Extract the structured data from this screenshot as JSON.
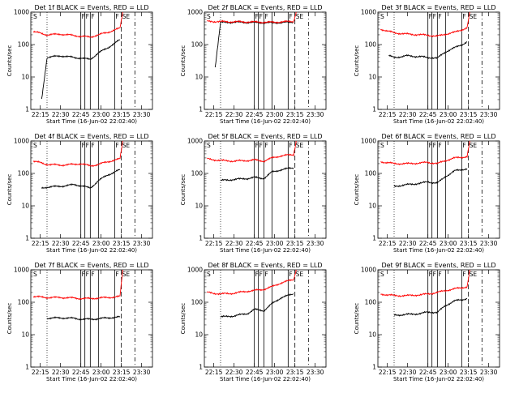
{
  "chart_data": [
    {
      "type": "line",
      "title": "Det 1f BLACK = Events, RED = LLD",
      "xlabel": "Start Time (16-Jun-02 22:02:40)",
      "ylabel": "Counts/sec",
      "yscale": "log",
      "ylim": [
        1,
        1000
      ],
      "xlim": [
        "22:08",
        "23:38"
      ],
      "x_ticks": [
        "22:15",
        "22:30",
        "22:45",
        "23:00",
        "23:15",
        "23:30"
      ],
      "y_ticks": [
        "1",
        "10",
        "100",
        "1000"
      ],
      "annotations": [
        "S",
        "F",
        "F",
        "F",
        "F",
        "SE"
      ],
      "series": [
        {
          "name": "BLACK = Events",
          "color": "#000000",
          "x": [
            "22:16",
            "22:20",
            "22:30",
            "22:40",
            "22:45",
            "22:52",
            "22:58",
            "23:05",
            "23:14"
          ],
          "values": [
            2,
            40,
            45,
            40,
            38,
            35,
            55,
            80,
            140
          ]
        },
        {
          "name": "RED = LLD",
          "color": "#ff0000",
          "x": [
            "22:10",
            "22:20",
            "22:30",
            "22:40",
            "22:45",
            "22:52",
            "22:58",
            "23:05",
            "23:14",
            "23:16"
          ],
          "values": [
            250,
            200,
            210,
            190,
            180,
            170,
            200,
            240,
            320,
            1000
          ]
        }
      ]
    },
    {
      "type": "line",
      "title": "Det 2f BLACK = Events, RED = LLD",
      "xlabel": "Start Time (16-Jun-02 22:02:40)",
      "ylabel": "Counts/sec",
      "yscale": "log",
      "ylim": [
        1,
        1000
      ],
      "xlim": [
        "22:08",
        "23:38"
      ],
      "x_ticks": [
        "22:15",
        "22:30",
        "22:45",
        "23:00",
        "23:15",
        "23:30"
      ],
      "y_ticks": [
        "1",
        "10",
        "100",
        "1000"
      ],
      "annotations": [
        "S",
        "F",
        "F",
        "F",
        "F",
        "SE"
      ],
      "series": [
        {
          "name": "BLACK = Events",
          "color": "#000000",
          "x": [
            "22:16",
            "22:20",
            "22:30",
            "22:40",
            "22:45",
            "22:52",
            "22:58",
            "23:05",
            "23:14"
          ],
          "values": [
            20,
            480,
            490,
            485,
            480,
            475,
            470,
            480,
            490
          ]
        },
        {
          "name": "RED = LLD",
          "color": "#ff0000",
          "x": [
            "22:10",
            "22:20",
            "22:30",
            "22:40",
            "22:45",
            "22:52",
            "22:58",
            "23:05",
            "23:14",
            "23:16"
          ],
          "values": [
            520,
            510,
            505,
            500,
            495,
            490,
            485,
            500,
            520,
            1000
          ]
        }
      ]
    },
    {
      "type": "line",
      "title": "Det 3f BLACK = Events, RED = LLD",
      "xlabel": "Start Time (16-Jun-02 22:02:40)",
      "ylabel": "Counts/sec",
      "yscale": "log",
      "ylim": [
        1,
        1000
      ],
      "xlim": [
        "22:08",
        "23:38"
      ],
      "x_ticks": [
        "22:15",
        "22:30",
        "22:45",
        "23:00",
        "23:15",
        "23:30"
      ],
      "y_ticks": [
        "1",
        "10",
        "100",
        "1000"
      ],
      "annotations": [
        "S",
        "F",
        "F",
        "F",
        "F",
        "SE"
      ],
      "series": [
        {
          "name": "BLACK = Events",
          "color": "#000000",
          "x": [
            "22:16",
            "22:20",
            "22:30",
            "22:40",
            "22:45",
            "22:52",
            "22:58",
            "23:05",
            "23:14"
          ],
          "values": [
            45,
            40,
            45,
            42,
            40,
            38,
            60,
            80,
            120
          ]
        },
        {
          "name": "RED = LLD",
          "color": "#ff0000",
          "x": [
            "22:10",
            "22:20",
            "22:30",
            "22:40",
            "22:45",
            "22:52",
            "22:58",
            "23:05",
            "23:14",
            "23:16"
          ],
          "values": [
            300,
            230,
            210,
            200,
            195,
            180,
            210,
            240,
            330,
            1000
          ]
        }
      ]
    },
    {
      "type": "line",
      "title": "Det 4f BLACK = Events, RED = LLD",
      "xlabel": "Start Time (16-Jun-02 22:02:40)",
      "ylabel": "Counts/sec",
      "yscale": "log",
      "ylim": [
        1,
        1000
      ],
      "xlim": [
        "22:08",
        "23:38"
      ],
      "x_ticks": [
        "22:15",
        "22:30",
        "22:45",
        "23:00",
        "23:15",
        "23:30"
      ],
      "y_ticks": [
        "1",
        "10",
        "100",
        "1000"
      ],
      "annotations": [
        "S",
        "F",
        "F",
        "F",
        "F",
        "SE"
      ],
      "series": [
        {
          "name": "BLACK = Events",
          "color": "#000000",
          "x": [
            "22:16",
            "22:20",
            "22:30",
            "22:40",
            "22:45",
            "22:52",
            "22:58",
            "23:05",
            "23:14"
          ],
          "values": [
            35,
            38,
            40,
            45,
            42,
            35,
            60,
            90,
            130
          ]
        },
        {
          "name": "RED = LLD",
          "color": "#ff0000",
          "x": [
            "22:10",
            "22:20",
            "22:30",
            "22:40",
            "22:45",
            "22:52",
            "22:58",
            "23:05",
            "23:14",
            "23:16"
          ],
          "values": [
            240,
            190,
            180,
            190,
            200,
            170,
            190,
            230,
            280,
            1000
          ]
        }
      ]
    },
    {
      "type": "line",
      "title": "Det 5f BLACK = Events, RED = LLD",
      "xlabel": "Start Time (16-Jun-02 22:02:40)",
      "ylabel": "Counts/sec",
      "yscale": "log",
      "ylim": [
        1,
        1000
      ],
      "xlim": [
        "22:08",
        "23:38"
      ],
      "x_ticks": [
        "22:15",
        "22:30",
        "22:45",
        "23:00",
        "23:15",
        "23:30"
      ],
      "y_ticks": [
        "1",
        "10",
        "100",
        "1000"
      ],
      "annotations": [
        "S",
        "F",
        "F",
        "F",
        "F",
        "SE"
      ],
      "series": [
        {
          "name": "BLACK = Events",
          "color": "#000000",
          "x": [
            "22:20",
            "22:30",
            "22:40",
            "22:45",
            "22:52",
            "22:58",
            "23:05",
            "23:14"
          ],
          "values": [
            60,
            65,
            70,
            75,
            70,
            110,
            130,
            150
          ]
        },
        {
          "name": "RED = LLD",
          "color": "#ff0000",
          "x": [
            "22:10",
            "22:20",
            "22:30",
            "22:40",
            "22:45",
            "22:52",
            "22:58",
            "23:05",
            "23:14",
            "23:16"
          ],
          "values": [
            280,
            250,
            240,
            250,
            260,
            240,
            300,
            350,
            380,
            1000
          ]
        }
      ]
    },
    {
      "type": "line",
      "title": "Det 6f BLACK = Events, RED = LLD",
      "xlabel": "Start Time (16-Jun-02 22:02:40)",
      "ylabel": "Counts/sec",
      "yscale": "log",
      "ylim": [
        1,
        1000
      ],
      "xlim": [
        "22:08",
        "23:38"
      ],
      "x_ticks": [
        "22:15",
        "22:30",
        "22:45",
        "23:00",
        "23:15",
        "23:30"
      ],
      "y_ticks": [
        "1",
        "10",
        "100",
        "1000"
      ],
      "annotations": [
        "S",
        "F",
        "F",
        "F",
        "F",
        "SE"
      ],
      "series": [
        {
          "name": "BLACK = Events",
          "color": "#000000",
          "x": [
            "22:20",
            "22:30",
            "22:40",
            "22:45",
            "22:52",
            "22:58",
            "23:05",
            "23:14"
          ],
          "values": [
            40,
            45,
            50,
            55,
            50,
            80,
            120,
            140
          ]
        },
        {
          "name": "RED = LLD",
          "color": "#ff0000",
          "x": [
            "22:10",
            "22:20",
            "22:30",
            "22:40",
            "22:45",
            "22:52",
            "22:58",
            "23:05",
            "23:14",
            "23:16"
          ],
          "values": [
            230,
            200,
            200,
            210,
            220,
            200,
            250,
            300,
            330,
            1000
          ]
        }
      ]
    },
    {
      "type": "line",
      "title": "Det 7f BLACK = Events, RED = LLD",
      "xlabel": "Start Time (16-Jun-02 22:02:40)",
      "ylabel": "Counts/sec",
      "yscale": "log",
      "ylim": [
        1,
        1000
      ],
      "xlim": [
        "22:08",
        "23:38"
      ],
      "x_ticks": [
        "22:15",
        "22:30",
        "22:45",
        "23:00",
        "23:15",
        "23:30"
      ],
      "y_ticks": [
        "1",
        "10",
        "100",
        "1000"
      ],
      "annotations": [
        "S",
        "F",
        "F",
        "F",
        "F",
        "SE"
      ],
      "series": [
        {
          "name": "BLACK = Events",
          "color": "#000000",
          "x": [
            "22:20",
            "22:30",
            "22:40",
            "22:45",
            "22:52",
            "22:58",
            "23:05",
            "23:14"
          ],
          "values": [
            32,
            33,
            32,
            30,
            30,
            31,
            33,
            35
          ]
        },
        {
          "name": "RED = LLD",
          "color": "#ff0000",
          "x": [
            "22:10",
            "22:20",
            "22:30",
            "22:40",
            "22:45",
            "22:52",
            "22:58",
            "23:05",
            "23:14",
            "23:16"
          ],
          "values": [
            150,
            140,
            140,
            135,
            130,
            130,
            135,
            140,
            150,
            1000
          ]
        }
      ]
    },
    {
      "type": "line",
      "title": "Det 8f BLACK = Events, RED = LLD",
      "xlabel": "Start Time (16-Jun-02 22:02:40)",
      "ylabel": "Counts/sec",
      "yscale": "log",
      "ylim": [
        1,
        1000
      ],
      "xlim": [
        "22:08",
        "23:38"
      ],
      "x_ticks": [
        "22:15",
        "22:30",
        "22:45",
        "23:00",
        "23:15",
        "23:30"
      ],
      "y_ticks": [
        "1",
        "10",
        "100",
        "1000"
      ],
      "annotations": [
        "S",
        "F",
        "F",
        "F",
        "F",
        "SE"
      ],
      "series": [
        {
          "name": "BLACK = Events",
          "color": "#000000",
          "x": [
            "22:20",
            "22:30",
            "22:40",
            "22:45",
            "22:52",
            "22:58",
            "23:05",
            "23:14"
          ],
          "values": [
            35,
            38,
            45,
            60,
            55,
            90,
            140,
            180
          ]
        },
        {
          "name": "RED = LLD",
          "color": "#ff0000",
          "x": [
            "22:10",
            "22:20",
            "22:30",
            "22:40",
            "22:45",
            "22:52",
            "22:58",
            "23:05",
            "23:14",
            "23:16"
          ],
          "values": [
            200,
            180,
            190,
            220,
            230,
            250,
            300,
            400,
            500,
            1000
          ]
        }
      ]
    },
    {
      "type": "line",
      "title": "Det 9f BLACK = Events, RED = LLD",
      "xlabel": "Start Time (16-Jun-02 22:02:40)",
      "ylabel": "Counts/sec",
      "yscale": "log",
      "ylim": [
        1,
        1000
      ],
      "xlim": [
        "22:08",
        "23:38"
      ],
      "x_ticks": [
        "22:15",
        "22:30",
        "22:45",
        "23:00",
        "23:15",
        "23:30"
      ],
      "y_ticks": [
        "1",
        "10",
        "100",
        "1000"
      ],
      "annotations": [
        "S",
        "F",
        "F",
        "F",
        "F",
        "SE"
      ],
      "series": [
        {
          "name": "BLACK = Events",
          "color": "#000000",
          "x": [
            "22:20",
            "22:30",
            "22:40",
            "22:45",
            "22:52",
            "22:58",
            "23:05",
            "23:14"
          ],
          "values": [
            40,
            42,
            45,
            50,
            48,
            80,
            110,
            130
          ]
        },
        {
          "name": "RED = LLD",
          "color": "#ff0000",
          "x": [
            "22:10",
            "22:20",
            "22:30",
            "22:40",
            "22:45",
            "22:52",
            "22:58",
            "23:05",
            "23:14",
            "23:16"
          ],
          "values": [
            180,
            160,
            160,
            170,
            180,
            200,
            230,
            260,
            300,
            1000
          ]
        }
      ]
    }
  ],
  "markers": {
    "dotted_at": "22:20",
    "solid_at": [
      "22:45",
      "22:48",
      "22:52",
      "22:58",
      "23:10"
    ],
    "dashed_at": [
      "23:15",
      "23:25"
    ]
  }
}
